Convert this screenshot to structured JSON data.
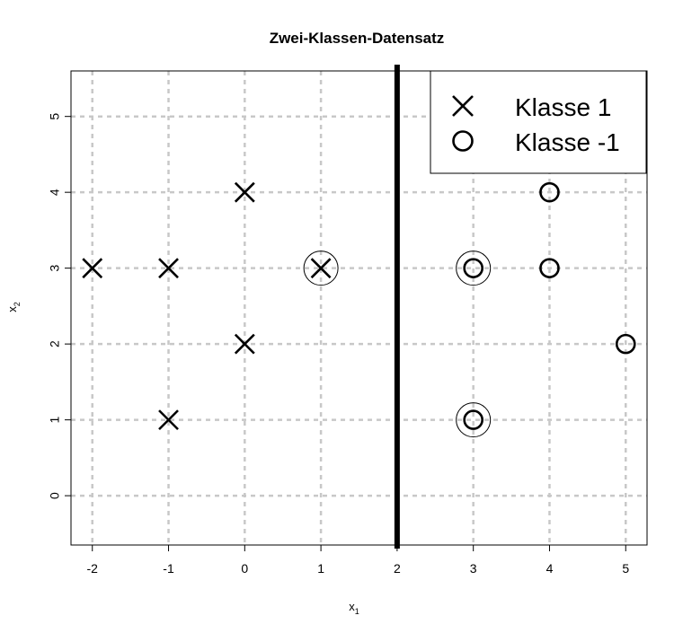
{
  "chart_data": {
    "type": "scatter",
    "title": "Zwei-Klassen-Datensatz",
    "xlabel": {
      "main": "x",
      "sub": "1"
    },
    "ylabel": {
      "main": "x",
      "sub": "2"
    },
    "xlim": [
      -2.28,
      5.28
    ],
    "ylim": [
      -0.65,
      5.6
    ],
    "xticks": [
      -2,
      -1,
      0,
      1,
      2,
      3,
      4,
      5
    ],
    "yticks": [
      0,
      1,
      2,
      3,
      4,
      5
    ],
    "xtick_labels": [
      "-2",
      "-1",
      "0",
      "1",
      "2",
      "3",
      "4",
      "5"
    ],
    "ytick_labels": [
      "0",
      "1",
      "2",
      "3",
      "4",
      "5"
    ],
    "grid": true,
    "legend_position": "top-right",
    "series": [
      {
        "name": "Klasse 1",
        "marker": "x",
        "points": [
          [
            -2,
            3
          ],
          [
            -1,
            3
          ],
          [
            -1,
            1
          ],
          [
            0,
            4
          ],
          [
            0,
            2
          ],
          [
            1,
            3
          ]
        ]
      },
      {
        "name": "Klasse -1",
        "marker": "circle",
        "points": [
          [
            3,
            3
          ],
          [
            3,
            1
          ],
          [
            4,
            4
          ],
          [
            4,
            3
          ],
          [
            5,
            2
          ]
        ]
      }
    ],
    "support_vectors": [
      [
        1,
        3
      ],
      [
        3,
        3
      ],
      [
        3,
        1
      ]
    ],
    "decision_boundary": {
      "x": 2
    }
  },
  "colors": {
    "points": "#000000",
    "grid": "#c8c8c8",
    "boundary": "#000000",
    "background": "#ffffff"
  }
}
